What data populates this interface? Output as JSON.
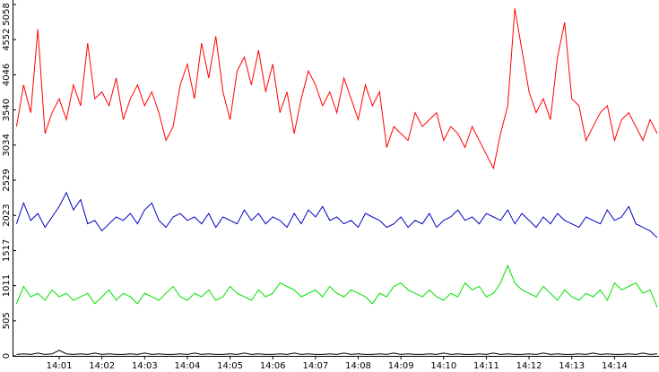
{
  "chart_data": {
    "type": "line",
    "categories": [
      null,
      null,
      null,
      null,
      null,
      null,
      "14:01",
      null,
      null,
      null,
      null,
      null,
      "14:02",
      null,
      null,
      null,
      null,
      null,
      "14:03",
      null,
      null,
      null,
      null,
      null,
      "14:04",
      null,
      null,
      null,
      null,
      null,
      "14:05",
      null,
      null,
      null,
      null,
      null,
      "14:06",
      null,
      null,
      null,
      null,
      null,
      "14:07",
      null,
      null,
      null,
      null,
      null,
      "14:08",
      null,
      null,
      null,
      null,
      null,
      "14:09",
      null,
      null,
      null,
      null,
      null,
      "14:10",
      null,
      null,
      null,
      null,
      null,
      "14:11",
      null,
      null,
      null,
      null,
      null,
      "14:12",
      null,
      null,
      null,
      null,
      null,
      "14:13",
      null,
      null,
      null,
      null,
      null,
      "14:14",
      null,
      null,
      null,
      null,
      null,
      null
    ],
    "ylim": [
      0,
      5058
    ],
    "yticks": [
      0,
      505,
      1011,
      1517,
      2023,
      2529,
      3034,
      3540,
      4046,
      4552,
      5058
    ],
    "series": [
      {
        "color": "#ff0000",
        "values": [
          3300,
          3900,
          3500,
          4700,
          3200,
          3500,
          3700,
          3400,
          3900,
          3600,
          4500,
          3700,
          3800,
          3600,
          4000,
          3400,
          3700,
          3900,
          3600,
          3800,
          3500,
          3100,
          3300,
          3900,
          4200,
          3700,
          4500,
          4000,
          4600,
          3800,
          3400,
          4100,
          4300,
          3900,
          4400,
          3800,
          4200,
          3500,
          3800,
          3200,
          3700,
          4100,
          3900,
          3600,
          3800,
          3500,
          4000,
          3700,
          3400,
          3900,
          3600,
          3800,
          3000,
          3300,
          3200,
          3100,
          3500,
          3300,
          3400,
          3500,
          3100,
          3300,
          3200,
          3000,
          3300,
          3100,
          2900,
          2700,
          3200,
          3600,
          5000,
          4400,
          3800,
          3500,
          3700,
          3400,
          4300,
          4800,
          3700,
          3600,
          3100,
          3300,
          3500,
          3600,
          3100,
          3400,
          3500,
          3300,
          3100,
          3400,
          3200
        ]
      },
      {
        "color": "#0000c0",
        "values": [
          1900,
          2200,
          1950,
          2050,
          1850,
          2000,
          2150,
          2350,
          2100,
          2250,
          1900,
          1950,
          1800,
          1900,
          2000,
          1950,
          2050,
          1900,
          2100,
          2200,
          1950,
          1850,
          2000,
          2050,
          1950,
          2000,
          1900,
          2050,
          1850,
          2000,
          1950,
          1900,
          2100,
          1950,
          2050,
          1900,
          2000,
          1950,
          1850,
          2050,
          1900,
          2100,
          2000,
          2150,
          1950,
          2000,
          1900,
          1950,
          1850,
          2050,
          2000,
          1950,
          1850,
          1900,
          2000,
          1850,
          1950,
          1900,
          2050,
          1850,
          1950,
          2000,
          2100,
          1950,
          2000,
          1900,
          2050,
          2000,
          1950,
          2100,
          1900,
          2050,
          1950,
          1850,
          2000,
          1900,
          2050,
          1950,
          1900,
          1850,
          2000,
          1950,
          1900,
          2100,
          1950,
          2000,
          2150,
          1900,
          1850,
          1800,
          1700
        ]
      },
      {
        "color": "#00e000",
        "values": [
          750,
          1000,
          850,
          900,
          800,
          950,
          850,
          900,
          800,
          850,
          900,
          750,
          850,
          950,
          800,
          900,
          850,
          750,
          900,
          850,
          800,
          900,
          1000,
          850,
          800,
          900,
          850,
          950,
          800,
          850,
          1000,
          900,
          850,
          800,
          950,
          850,
          900,
          1050,
          1000,
          950,
          850,
          900,
          950,
          850,
          1000,
          900,
          850,
          950,
          900,
          850,
          750,
          900,
          850,
          1000,
          1050,
          950,
          900,
          850,
          950,
          850,
          800,
          900,
          850,
          1050,
          950,
          1000,
          850,
          900,
          1050,
          1300,
          1050,
          950,
          900,
          850,
          1000,
          900,
          800,
          950,
          850,
          800,
          900,
          850,
          950,
          800,
          1050,
          950,
          1000,
          1050,
          900,
          950,
          700
        ]
      },
      {
        "color": "#000000",
        "values": [
          20,
          30,
          20,
          40,
          20,
          30,
          80,
          30,
          20,
          30,
          20,
          40,
          20,
          30,
          20,
          20,
          30,
          20,
          40,
          20,
          30,
          20,
          20,
          30,
          20,
          40,
          20,
          30,
          20,
          20,
          30,
          20,
          40,
          20,
          30,
          20,
          20,
          30,
          20,
          40,
          20,
          30,
          20,
          20,
          30,
          20,
          40,
          20,
          30,
          20,
          20,
          30,
          20,
          40,
          20,
          30,
          20,
          20,
          30,
          20,
          40,
          20,
          30,
          20,
          20,
          30,
          20,
          40,
          20,
          30,
          20,
          20,
          30,
          20,
          40,
          20,
          30,
          20,
          20,
          30,
          20,
          40,
          20,
          30,
          20,
          20,
          30,
          20,
          40,
          20,
          30
        ]
      }
    ]
  }
}
